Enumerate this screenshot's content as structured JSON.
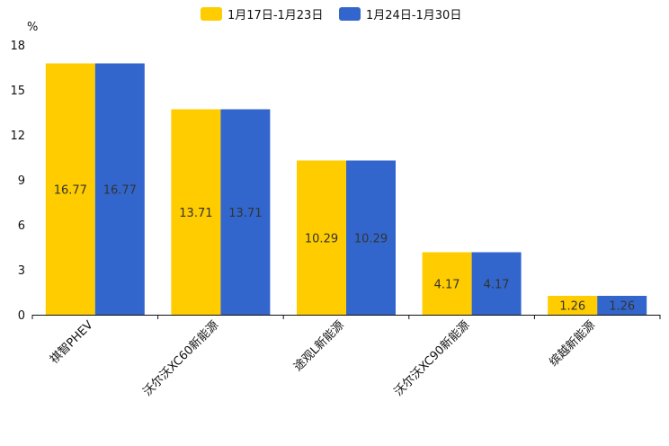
{
  "chart_data": {
    "type": "bar",
    "title": "",
    "xlabel": "",
    "ylabel": "%",
    "ylim": [
      0,
      18
    ],
    "yticks": [
      0,
      3,
      6,
      9,
      12,
      15,
      18
    ],
    "categories": [
      "祺智PHEV",
      "沃尔沃XC60新能源",
      "途观L新能源",
      "沃尔沃XC90新能源",
      "缤越新能源"
    ],
    "series": [
      {
        "name": "1月17日-1月23日",
        "color": "#FFCC00",
        "values": [
          16.77,
          13.71,
          10.29,
          4.17,
          1.26
        ],
        "labels": [
          "16.77",
          "13.71",
          "10.29",
          "4.17",
          "1.26"
        ]
      },
      {
        "name": "1月24日-1月30日",
        "color": "#3366CC",
        "values": [
          16.77,
          13.71,
          10.29,
          4.17,
          1.26
        ],
        "labels": [
          "16.77",
          "13.71",
          "10.29",
          "4.17",
          "1.26"
        ]
      }
    ],
    "legend_position": "top-center",
    "grid": false
  }
}
